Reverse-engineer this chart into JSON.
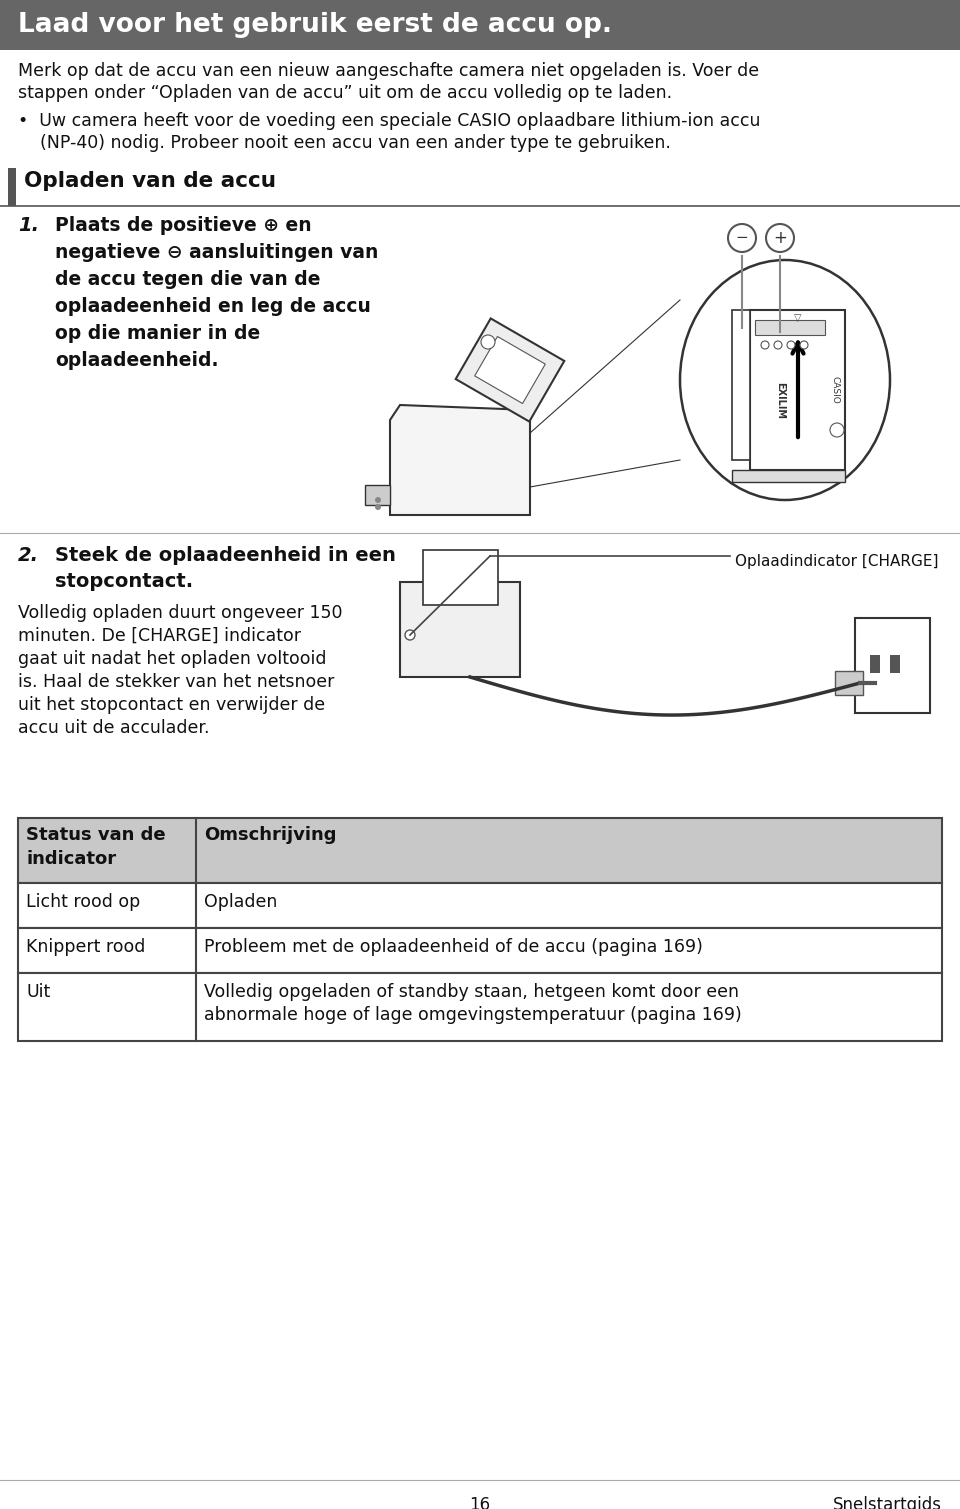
{
  "title_banner_text": "Laad voor het gebruik eerst de accu op.",
  "title_banner_color": "#666666",
  "title_text_color": "#ffffff",
  "body_bg": "#ffffff",
  "para1_line1": "Merk op dat de accu van een nieuw aangeschafte camera niet opgeladen is. Voer de",
  "para1_line2": "stappen onder “Opladen van de accu” uit om de accu volledig op te laden.",
  "bullet_line1": "•  Uw camera heeft voor de voeding een speciale CASIO oplaadbare lithium-ion accu",
  "bullet_line2": "    (NP-40) nodig. Probeer nooit een accu van een ander type te gebruiken.",
  "section_header": "Opladen van de accu",
  "section_bar_color": "#555555",
  "step1_num": "1.",
  "step1_lines": [
    "Plaats de positieve ⊕ en",
    "negatieve ⊖ aansluitingen van",
    "de accu tegen die van de",
    "oplaadeenheid en leg de accu",
    "op die manier in de",
    "oplaadeenheid."
  ],
  "step2_num": "2.",
  "step2_line1": "Steek de oplaadeenheid in een",
  "step2_line2": "stopcontact.",
  "step2_body": [
    "Volledig opladen duurt ongeveer 150",
    "minuten. De [CHARGE] indicator",
    "gaat uit nadat het opladen voltooid",
    "is. Haal de stekker van het netsnoer",
    "uit het stopcontact en verwijder de",
    "accu uit de acculader."
  ],
  "charge_label": "Oplaadindicator [CHARGE]",
  "table_header_col1": "Status van de\nindicator",
  "table_header_col2": "Omschrijving",
  "table_header_bg": "#c8c8c8",
  "table_border_color": "#444444",
  "table_rows": [
    [
      "Licht rood op",
      "Opladen"
    ],
    [
      "Knippert rood",
      "Probleem met de oplaadeenheid of de accu (pagina 169)"
    ],
    [
      "Uit",
      "Volledig opgeladen of standby staan, hetgeen komt door een\nabnormale hoge of lage omgevingstemperatuur (pagina 169)"
    ]
  ],
  "footer_num": "16",
  "footer_text": "Snelstartgids",
  "text_color": "#111111",
  "gray_line_color": "#aaaaaa",
  "dark_line_color": "#555555"
}
